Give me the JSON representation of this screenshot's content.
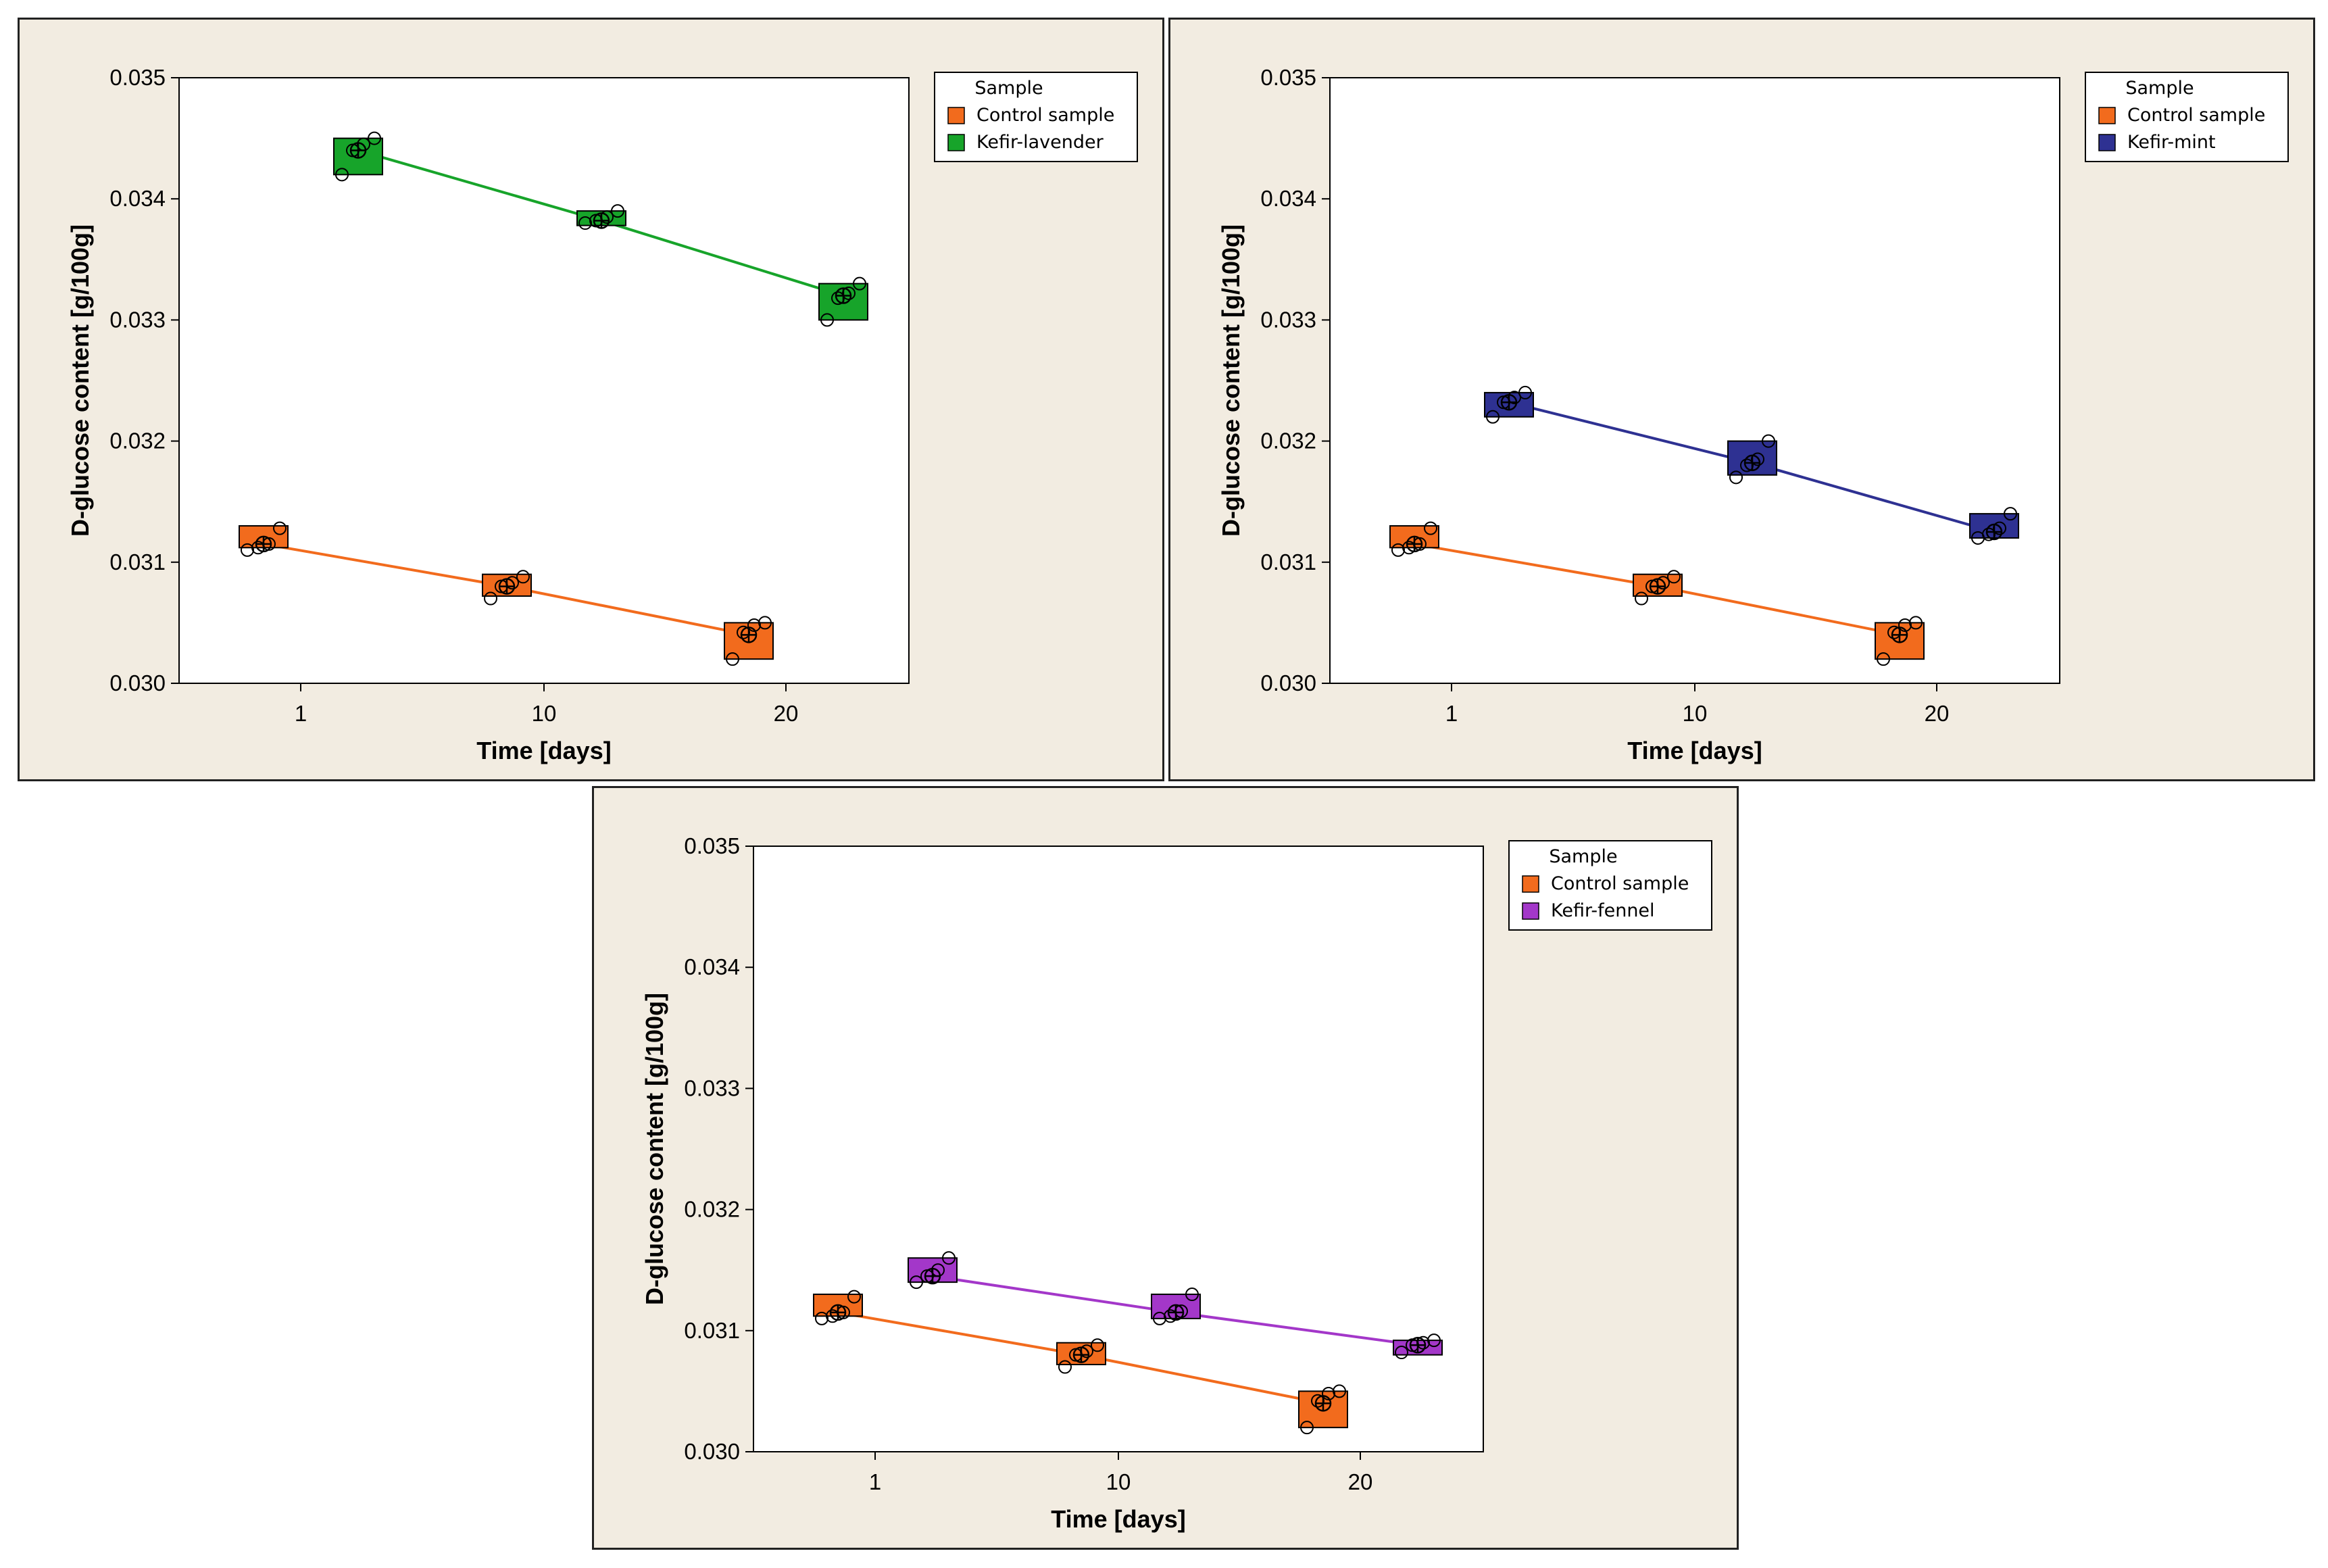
{
  "chart_data": [
    {
      "type": "box",
      "title": "",
      "xlabel": "Time [days]",
      "ylabel": "D-glucose content [g/100g]",
      "ylim": [
        0.03,
        0.035
      ],
      "yticks": [
        "0.030",
        "0.031",
        "0.032",
        "0.033",
        "0.034",
        "0.035"
      ],
      "categories": [
        "1",
        "10",
        "20"
      ],
      "legend": {
        "title": "Sample",
        "placement": "top-right"
      },
      "series": [
        {
          "name": "Control sample",
          "color": "#f26b1d",
          "boxes": [
            {
              "q1": 0.03112,
              "q3": 0.0313,
              "mean": 0.03115,
              "points": [
                0.0311,
                0.03112,
                0.03115,
                0.03128
              ]
            },
            {
              "q1": 0.03072,
              "q3": 0.0309,
              "mean": 0.0308,
              "points": [
                0.0307,
                0.0308,
                0.03083,
                0.03088
              ]
            },
            {
              "q1": 0.0302,
              "q3": 0.0305,
              "mean": 0.0304,
              "points": [
                0.0302,
                0.03042,
                0.03048,
                0.0305
              ]
            }
          ]
        },
        {
          "name": "Kefir-lavender",
          "color": "#17a42a",
          "boxes": [
            {
              "q1": 0.0342,
              "q3": 0.0345,
              "mean": 0.0344,
              "points": [
                0.0342,
                0.0344,
                0.03445,
                0.0345
              ]
            },
            {
              "q1": 0.03378,
              "q3": 0.0339,
              "mean": 0.03382,
              "points": [
                0.0338,
                0.03382,
                0.03385,
                0.0339
              ]
            },
            {
              "q1": 0.033,
              "q3": 0.0333,
              "mean": 0.0332,
              "points": [
                0.033,
                0.03318,
                0.03322,
                0.0333
              ]
            }
          ]
        }
      ]
    },
    {
      "type": "box",
      "title": "",
      "xlabel": "Time [days]",
      "ylabel": "D-glucose content [g/100g]",
      "ylim": [
        0.03,
        0.035
      ],
      "yticks": [
        "0.030",
        "0.031",
        "0.032",
        "0.033",
        "0.034",
        "0.035"
      ],
      "categories": [
        "1",
        "10",
        "20"
      ],
      "legend": {
        "title": "Sample",
        "placement": "top-right"
      },
      "series": [
        {
          "name": "Control sample",
          "color": "#f26b1d",
          "boxes": [
            {
              "q1": 0.03112,
              "q3": 0.0313,
              "mean": 0.03115,
              "points": [
                0.0311,
                0.03112,
                0.03115,
                0.03128
              ]
            },
            {
              "q1": 0.03072,
              "q3": 0.0309,
              "mean": 0.0308,
              "points": [
                0.0307,
                0.0308,
                0.03083,
                0.03088
              ]
            },
            {
              "q1": 0.0302,
              "q3": 0.0305,
              "mean": 0.0304,
              "points": [
                0.0302,
                0.03042,
                0.03048,
                0.0305
              ]
            }
          ]
        },
        {
          "name": "Kefir-mint",
          "color": "#2e3192",
          "boxes": [
            {
              "q1": 0.0322,
              "q3": 0.0324,
              "mean": 0.03232,
              "points": [
                0.0322,
                0.03232,
                0.03236,
                0.0324
              ]
            },
            {
              "q1": 0.03172,
              "q3": 0.032,
              "mean": 0.03182,
              "points": [
                0.0317,
                0.0318,
                0.03185,
                0.032
              ]
            },
            {
              "q1": 0.0312,
              "q3": 0.0314,
              "mean": 0.03125,
              "points": [
                0.0312,
                0.03123,
                0.03128,
                0.0314
              ]
            }
          ]
        }
      ]
    },
    {
      "type": "box",
      "title": "",
      "xlabel": "Time [days]",
      "ylabel": "D-glucose content [g/100g]",
      "ylim": [
        0.03,
        0.035
      ],
      "yticks": [
        "0.030",
        "0.031",
        "0.032",
        "0.033",
        "0.034",
        "0.035"
      ],
      "categories": [
        "1",
        "10",
        "20"
      ],
      "legend": {
        "title": "Sample",
        "placement": "top-right"
      },
      "series": [
        {
          "name": "Control sample",
          "color": "#f26b1d",
          "boxes": [
            {
              "q1": 0.03112,
              "q3": 0.0313,
              "mean": 0.03115,
              "points": [
                0.0311,
                0.03112,
                0.03115,
                0.03128
              ]
            },
            {
              "q1": 0.03072,
              "q3": 0.0309,
              "mean": 0.0308,
              "points": [
                0.0307,
                0.0308,
                0.03083,
                0.03088
              ]
            },
            {
              "q1": 0.0302,
              "q3": 0.0305,
              "mean": 0.0304,
              "points": [
                0.0302,
                0.03042,
                0.03048,
                0.0305
              ]
            }
          ]
        },
        {
          "name": "Kefir-fennel",
          "color": "#a337c9",
          "boxes": [
            {
              "q1": 0.0314,
              "q3": 0.0316,
              "mean": 0.03145,
              "points": [
                0.0314,
                0.03145,
                0.0315,
                0.0316
              ]
            },
            {
              "q1": 0.0311,
              "q3": 0.0313,
              "mean": 0.03115,
              "points": [
                0.0311,
                0.03112,
                0.03116,
                0.0313
              ]
            },
            {
              "q1": 0.0308,
              "q3": 0.03092,
              "mean": 0.03088,
              "points": [
                0.03082,
                0.03088,
                0.0309,
                0.03092
              ]
            }
          ]
        }
      ]
    }
  ]
}
